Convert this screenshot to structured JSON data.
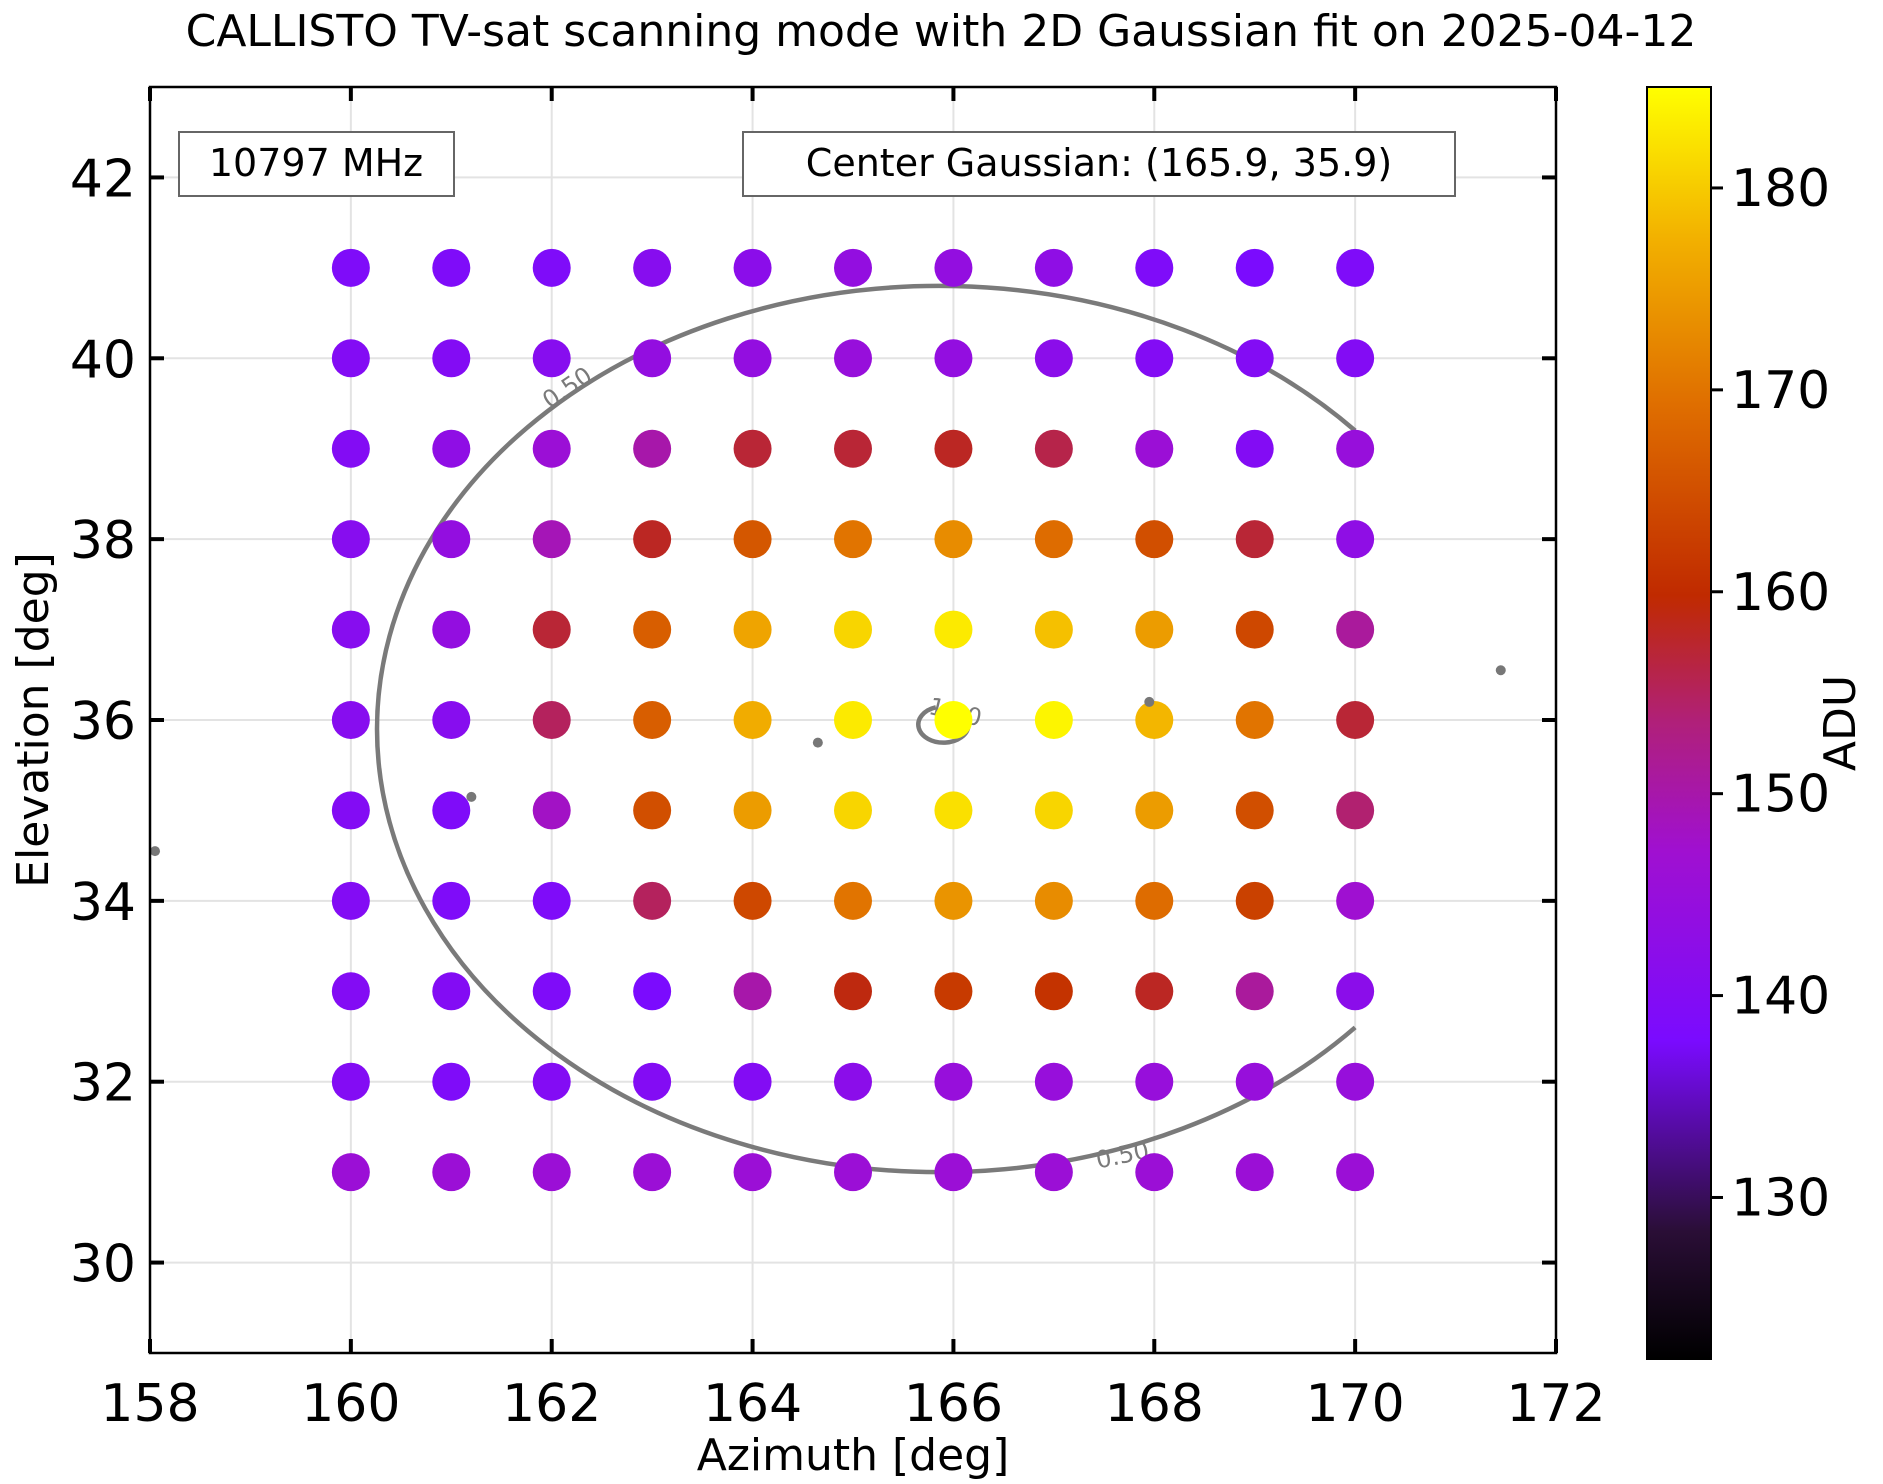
{
  "chart_data": {
    "type": "scatter",
    "title": "CALLISTO TV-sat scanning mode with 2D Gaussian fit on 2025-04-12",
    "xlabel": "Azimuth [deg]",
    "ylabel": "Elevation [deg]",
    "xlim": [
      158,
      172
    ],
    "ylim": [
      29,
      43
    ],
    "xticks": [
      "158",
      "160",
      "162",
      "164",
      "166",
      "168",
      "170",
      "172"
    ],
    "yticks": [
      "30",
      "32",
      "34",
      "36",
      "38",
      "40",
      "42"
    ],
    "grid": true,
    "annotation_left": "10797 MHz",
    "annotation_right": "Center Gaussian: (165.9, 35.9)",
    "colorbar": {
      "label": "ADU",
      "colormap": "gnuplot",
      "vmin": 122,
      "vmax": 185,
      "ticks": [
        "130",
        "140",
        "150",
        "160",
        "170",
        "180"
      ]
    },
    "grid_azimuth": [
      160,
      161,
      162,
      163,
      164,
      165,
      166,
      167,
      168,
      169,
      170
    ],
    "grid_elevation": [
      41,
      40,
      39,
      38,
      37,
      36,
      35,
      34,
      33,
      32,
      31
    ],
    "adu_values": [
      [
        139,
        139,
        139,
        141,
        142,
        144,
        144,
        143,
        139,
        138,
        139
      ],
      [
        140,
        140,
        141,
        144,
        144,
        145,
        144,
        142,
        140,
        140,
        140
      ],
      [
        140,
        143,
        146,
        150,
        157,
        157,
        158,
        156,
        146,
        140,
        145
      ],
      [
        141,
        144,
        149,
        158,
        166,
        170,
        173,
        169,
        165,
        157,
        143
      ],
      [
        141,
        144,
        157,
        167,
        176,
        181,
        183,
        179,
        175,
        164,
        151
      ],
      [
        141,
        141,
        155,
        167,
        177,
        183,
        185,
        184,
        178,
        170,
        157
      ],
      [
        140,
        139,
        148,
        165,
        175,
        181,
        182,
        181,
        175,
        165,
        154
      ],
      [
        140,
        139,
        139,
        155,
        164,
        170,
        174,
        173,
        169,
        163,
        147
      ],
      [
        140,
        140,
        139,
        138,
        150,
        159,
        162,
        161,
        158,
        151,
        142
      ],
      [
        140,
        139,
        140,
        140,
        140,
        142,
        145,
        145,
        145,
        145,
        145
      ],
      [
        146,
        146,
        146,
        146,
        146,
        146,
        146,
        146,
        146,
        146,
        146
      ]
    ],
    "contours": [
      {
        "level_label": "0.50",
        "center": [
          165.9,
          35.9
        ],
        "semi_axes": [
          5.6,
          4.9
        ],
        "cut_from": [
          170.0,
          32.6
        ],
        "cut_to": [
          170.0,
          39.2
        ]
      },
      {
        "level_label": "1.00",
        "center": [
          165.9,
          35.9
        ],
        "semi_axes": [
          0.25,
          0.2
        ]
      }
    ],
    "extra_points": [
      [
        158.05,
        34.55
      ],
      [
        161.2,
        35.15
      ],
      [
        164.65,
        35.75
      ],
      [
        167.95,
        36.2
      ],
      [
        171.45,
        36.55
      ]
    ]
  }
}
